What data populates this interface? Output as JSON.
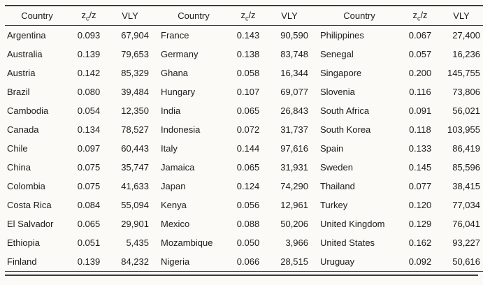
{
  "table": {
    "header": {
      "country": "Country",
      "ratio_base": "z",
      "ratio_sub": "c",
      "ratio_slash": "/z",
      "vly": "VLY"
    },
    "rows": [
      {
        "g1": {
          "country": "Argentina",
          "ratio": "0.093",
          "vly": "67,904"
        },
        "g2": {
          "country": "France",
          "ratio": "0.143",
          "vly": "90,590"
        },
        "g3": {
          "country": "Philippines",
          "ratio": "0.067",
          "vly": "27,400"
        }
      },
      {
        "g1": {
          "country": "Australia",
          "ratio": "0.139",
          "vly": "79,653"
        },
        "g2": {
          "country": "Germany",
          "ratio": "0.138",
          "vly": "83,748"
        },
        "g3": {
          "country": "Senegal",
          "ratio": "0.057",
          "vly": "16,236"
        }
      },
      {
        "g1": {
          "country": "Austria",
          "ratio": "0.142",
          "vly": "85,329"
        },
        "g2": {
          "country": "Ghana",
          "ratio": "0.058",
          "vly": "16,344"
        },
        "g3": {
          "country": "Singapore",
          "ratio": "0.200",
          "vly": "145,755"
        }
      },
      {
        "g1": {
          "country": "Brazil",
          "ratio": "0.080",
          "vly": "39,484"
        },
        "g2": {
          "country": "Hungary",
          "ratio": "0.107",
          "vly": "69,077"
        },
        "g3": {
          "country": "Slovenia",
          "ratio": "0.116",
          "vly": "73,806"
        }
      },
      {
        "g1": {
          "country": "Cambodia",
          "ratio": "0.054",
          "vly": "12,350"
        },
        "g2": {
          "country": "India",
          "ratio": "0.065",
          "vly": "26,843"
        },
        "g3": {
          "country": "South Africa",
          "ratio": "0.091",
          "vly": "56,021"
        }
      },
      {
        "g1": {
          "country": "Canada",
          "ratio": "0.134",
          "vly": "78,527"
        },
        "g2": {
          "country": "Indonesia",
          "ratio": "0.072",
          "vly": "31,737"
        },
        "g3": {
          "country": "South Korea",
          "ratio": "0.118",
          "vly": "103,955"
        }
      },
      {
        "g1": {
          "country": "Chile",
          "ratio": "0.097",
          "vly": "60,443"
        },
        "g2": {
          "country": "Italy",
          "ratio": "0.144",
          "vly": "97,616"
        },
        "g3": {
          "country": "Spain",
          "ratio": "0.133",
          "vly": "86,419"
        }
      },
      {
        "g1": {
          "country": "China",
          "ratio": "0.075",
          "vly": "35,747"
        },
        "g2": {
          "country": "Jamaica",
          "ratio": "0.065",
          "vly": "31,931"
        },
        "g3": {
          "country": "Sweden",
          "ratio": "0.145",
          "vly": "85,596"
        }
      },
      {
        "g1": {
          "country": "Colombia",
          "ratio": "0.075",
          "vly": "41,633"
        },
        "g2": {
          "country": "Japan",
          "ratio": "0.124",
          "vly": "74,290"
        },
        "g3": {
          "country": "Thailand",
          "ratio": "0.077",
          "vly": "38,415"
        }
      },
      {
        "g1": {
          "country": "Costa Rica",
          "ratio": "0.084",
          "vly": "55,094"
        },
        "g2": {
          "country": "Kenya",
          "ratio": "0.056",
          "vly": "12,961"
        },
        "g3": {
          "country": "Turkey",
          "ratio": "0.120",
          "vly": "77,034"
        }
      },
      {
        "g1": {
          "country": "El Salvador",
          "ratio": "0.065",
          "vly": "29,901"
        },
        "g2": {
          "country": "Mexico",
          "ratio": "0.088",
          "vly": "50,206"
        },
        "g3": {
          "country": "United Kingdom",
          "ratio": "0.129",
          "vly": "76,041"
        }
      },
      {
        "g1": {
          "country": "Ethiopia",
          "ratio": "0.051",
          "vly": "5,435"
        },
        "g2": {
          "country": "Mozambique",
          "ratio": "0.050",
          "vly": "3,966"
        },
        "g3": {
          "country": "United States",
          "ratio": "0.162",
          "vly": "93,227"
        }
      },
      {
        "g1": {
          "country": "Finland",
          "ratio": "0.139",
          "vly": "84,232"
        },
        "g2": {
          "country": "Nigeria",
          "ratio": "0.066",
          "vly": "28,515"
        },
        "g3": {
          "country": "Uruguay",
          "ratio": "0.092",
          "vly": "50,616"
        }
      }
    ]
  }
}
